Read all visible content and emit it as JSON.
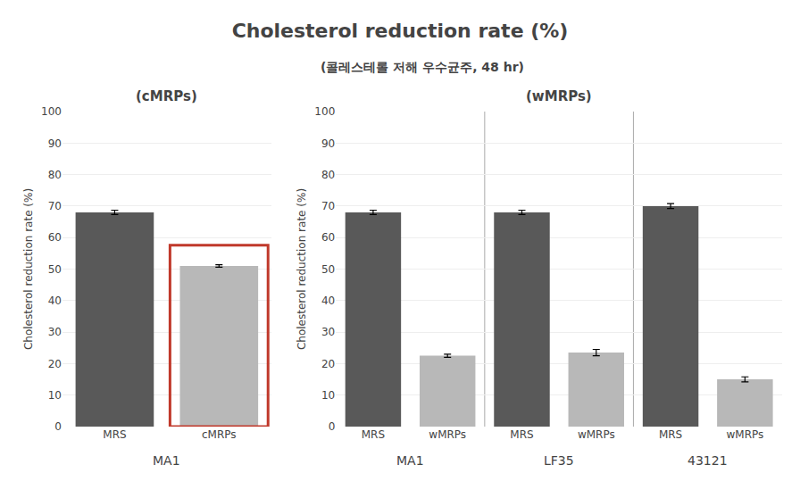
{
  "title": "Cholesterol reduction rate (%)",
  "subtitle": "(콜레스테롤 저해 우수균주, 48 hr)",
  "chart_data": [
    {
      "type": "bar",
      "title": "(cMRPs)",
      "ylabel": "Cholesterol reduction rate (%)",
      "categories": [
        "MA1"
      ],
      "series": [
        {
          "name": "MRS",
          "color": "#595959",
          "values": [
            68
          ],
          "errors": [
            0.7
          ]
        },
        {
          "name": "cMRPs",
          "color": "#b8b8b8",
          "values": [
            51
          ],
          "errors": [
            0.4
          ]
        }
      ],
      "ylim": [
        0,
        100
      ],
      "yticks": [
        0,
        10,
        20,
        30,
        40,
        50,
        60,
        70,
        80,
        90,
        100
      ],
      "grid": true,
      "highlight": {
        "category": "MA1",
        "series": "cMRPs",
        "color": "#c0392b"
      }
    },
    {
      "type": "bar",
      "title": "(wMRPs)",
      "ylabel": "Cholesterol reduction rate (%)",
      "categories": [
        "MA1",
        "LF35",
        "43121"
      ],
      "series": [
        {
          "name": "MRS",
          "color": "#595959",
          "values": [
            68,
            68,
            70
          ],
          "errors": [
            0.7,
            0.7,
            0.8
          ]
        },
        {
          "name": "wMRPs",
          "color": "#b8b8b8",
          "values": [
            22.5,
            23.5,
            15
          ],
          "errors": [
            0.5,
            1.0,
            0.8
          ]
        }
      ],
      "ylim": [
        0,
        100
      ],
      "yticks": [
        0,
        10,
        20,
        30,
        40,
        50,
        60,
        70,
        80,
        90,
        100
      ],
      "grid": true
    }
  ]
}
